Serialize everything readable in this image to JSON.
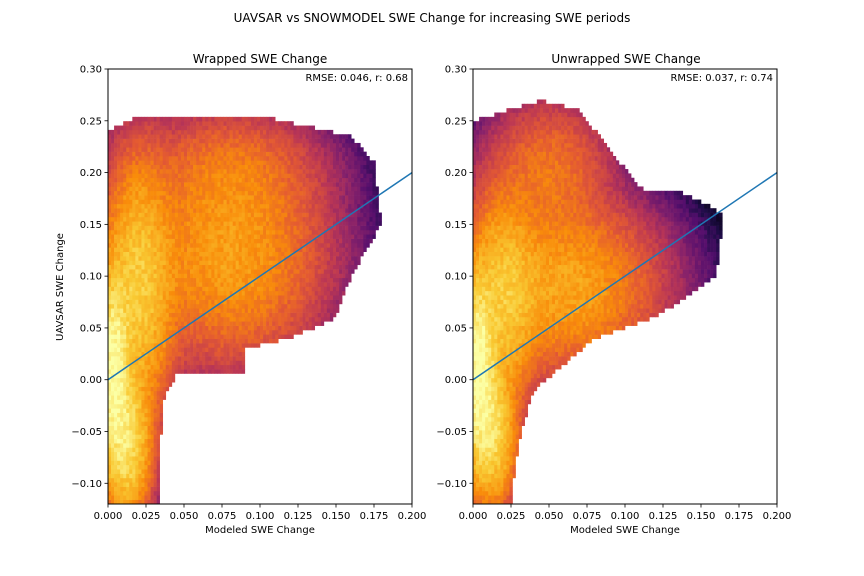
{
  "figure": {
    "suptitle": "UAVSAR vs SNOWMODEL SWE Change for increasing SWE periods"
  },
  "colors": {
    "fit_line": "#1f77b4",
    "colormap": "inferno"
  },
  "chart_data": [
    {
      "type": "heatmap",
      "title": "Wrapped SWE Change",
      "xlabel": "Modeled SWE Change",
      "ylabel": "UAVSAR SWE Change",
      "annotation": "RMSE: 0.046, r: 0.68",
      "xlim": [
        0.0,
        0.2
      ],
      "ylim": [
        -0.12,
        0.3
      ],
      "xticks": [
        "0.000",
        "0.025",
        "0.050",
        "0.075",
        "0.100",
        "0.125",
        "0.150",
        "0.175",
        "0.200"
      ],
      "yticks": [
        "−0.10",
        "−0.05",
        "0.00",
        "0.05",
        "0.10",
        "0.15",
        "0.20",
        "0.25",
        "0.30"
      ],
      "grid": false,
      "one_to_one_line": {
        "x": [
          0.0,
          0.2
        ],
        "y": [
          0.0,
          0.2
        ]
      },
      "density_model": {
        "components": [
          {
            "x": 0.003,
            "y": 0.01,
            "sx": 0.006,
            "sy": 0.045,
            "w": 1.0
          },
          {
            "x": 0.012,
            "y": -0.06,
            "sx": 0.008,
            "sy": 0.035,
            "w": 0.55
          },
          {
            "x": 0.02,
            "y": 0.09,
            "sx": 0.012,
            "sy": 0.06,
            "w": 0.35
          },
          {
            "x": 0.08,
            "y": 0.12,
            "sx": 0.03,
            "sy": 0.05,
            "w": 0.14
          },
          {
            "x": 0.08,
            "y": 0.2,
            "sx": 0.03,
            "sy": 0.03,
            "w": 0.05
          }
        ],
        "support": [
          [
            0.0,
            -0.12
          ],
          [
            0.033,
            -0.12
          ],
          [
            0.036,
            -0.02
          ],
          [
            0.045,
            0.004
          ],
          [
            0.09,
            0.004
          ],
          [
            0.09,
            0.03
          ],
          [
            0.12,
            0.04
          ],
          [
            0.15,
            0.06
          ],
          [
            0.16,
            0.1
          ],
          [
            0.18,
            0.15
          ],
          [
            0.175,
            0.21
          ],
          [
            0.16,
            0.235
          ],
          [
            0.1,
            0.255
          ],
          [
            0.02,
            0.255
          ],
          [
            0.0,
            0.24
          ]
        ]
      }
    },
    {
      "type": "heatmap",
      "title": "Unwrapped SWE Change",
      "xlabel": "Modeled SWE Change",
      "ylabel": "",
      "annotation": "RMSE: 0.037, r: 0.74",
      "xlim": [
        0.0,
        0.2
      ],
      "ylim": [
        -0.12,
        0.3
      ],
      "xticks": [
        "0.000",
        "0.025",
        "0.050",
        "0.075",
        "0.100",
        "0.125",
        "0.150",
        "0.175",
        "0.200"
      ],
      "yticks": [
        "−0.10",
        "−0.05",
        "0.00",
        "0.05",
        "0.10",
        "0.15",
        "0.20",
        "0.25",
        "0.30"
      ],
      "grid": false,
      "one_to_one_line": {
        "x": [
          0.0,
          0.2
        ],
        "y": [
          0.0,
          0.2
        ]
      },
      "density_model": {
        "components": [
          {
            "x": 0.003,
            "y": 0.01,
            "sx": 0.006,
            "sy": 0.045,
            "w": 1.0
          },
          {
            "x": 0.012,
            "y": -0.05,
            "sx": 0.008,
            "sy": 0.035,
            "w": 0.5
          },
          {
            "x": 0.02,
            "y": 0.08,
            "sx": 0.012,
            "sy": 0.05,
            "w": 0.3
          },
          {
            "x": 0.06,
            "y": 0.09,
            "sx": 0.03,
            "sy": 0.04,
            "w": 0.16
          },
          {
            "x": 0.05,
            "y": 0.2,
            "sx": 0.02,
            "sy": 0.035,
            "w": 0.06
          }
        ],
        "support": [
          [
            0.0,
            -0.12
          ],
          [
            0.025,
            -0.12
          ],
          [
            0.03,
            -0.06
          ],
          [
            0.04,
            -0.01
          ],
          [
            0.08,
            0.04
          ],
          [
            0.12,
            0.06
          ],
          [
            0.16,
            0.1
          ],
          [
            0.165,
            0.16
          ],
          [
            0.14,
            0.18
          ],
          [
            0.11,
            0.185
          ],
          [
            0.07,
            0.26
          ],
          [
            0.045,
            0.27
          ],
          [
            0.0,
            0.25
          ]
        ]
      }
    }
  ]
}
